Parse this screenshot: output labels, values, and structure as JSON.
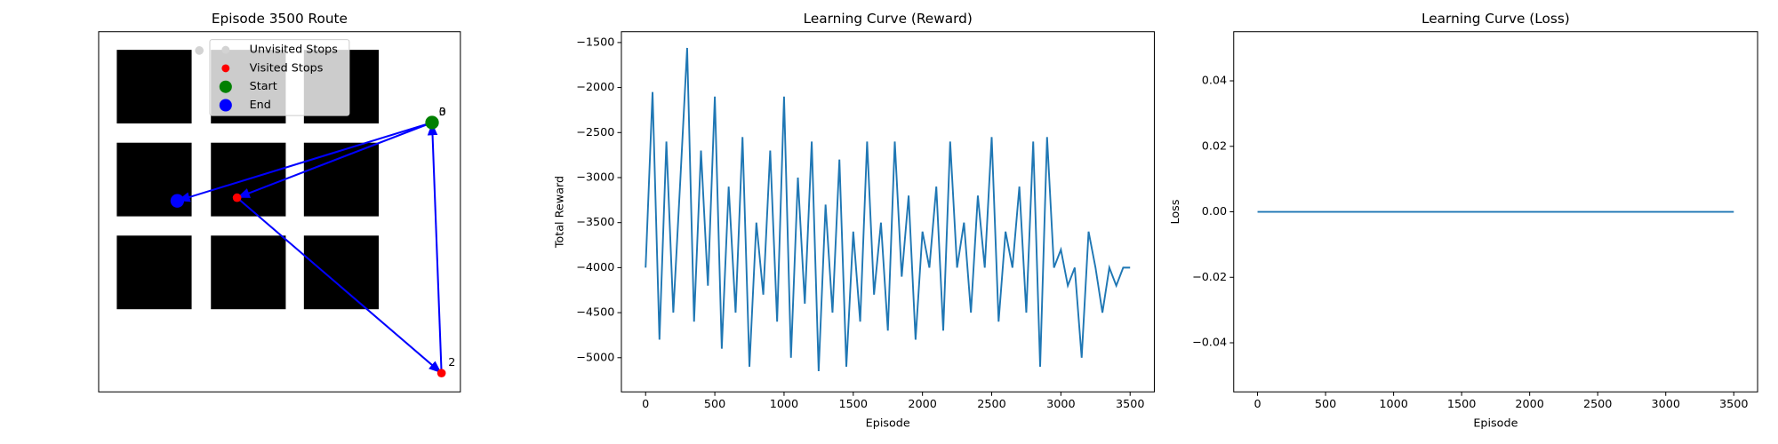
{
  "chart_data": [
    {
      "type": "scatter",
      "title": "Episode 3500 Route",
      "xlim": [
        -0.6,
        10.9
      ],
      "ylim": [
        -0.6,
        10.9
      ],
      "series": [
        {
          "name": "Unvisited Stops",
          "color": "#d3d3d3",
          "size": 40,
          "x": [
            2.6
          ],
          "values": [
            10.3
          ]
        },
        {
          "name": "Visited Stops",
          "color": "#ff0000",
          "size": 40,
          "x": [
            3.8,
            10.3
          ],
          "values": [
            5.6,
            0.0
          ]
        },
        {
          "name": "Start",
          "color": "#008000",
          "size": 100,
          "x": [
            10.0
          ],
          "values": [
            8.0
          ]
        },
        {
          "name": "End",
          "color": "#0000ff",
          "size": 100,
          "x": [
            1.9
          ],
          "values": [
            5.5
          ]
        }
      ],
      "route": {
        "color": "#0000ff",
        "x": [
          10.0,
          3.8,
          10.3,
          10.0,
          1.9
        ],
        "values": [
          8.0,
          5.6,
          0.0,
          8.0,
          5.5
        ]
      },
      "annotations": [
        {
          "text": "0",
          "x": 10.0,
          "y": 8.0
        },
        {
          "text": "2",
          "x": 10.3,
          "y": 0.0
        },
        {
          "text": "3",
          "x": 10.0,
          "y": 8.0
        }
      ],
      "legend": "upper center"
    },
    {
      "type": "line",
      "title": "Learning Curve (Reward)",
      "x_label": "Episode",
      "y_label": "Total Reward",
      "color": "#1f77b4",
      "xlim": [
        -175,
        3675
      ],
      "ylim": [
        -5380,
        -1380
      ],
      "xticks": [
        0,
        500,
        1000,
        1500,
        2000,
        2500,
        3000,
        3500
      ],
      "yticks": [
        {
          "value": -5000,
          "label": "−5000"
        },
        {
          "value": -4500,
          "label": "−4500"
        },
        {
          "value": -4000,
          "label": "−4000"
        },
        {
          "value": -3500,
          "label": "−3500"
        },
        {
          "value": -3000,
          "label": "−3000"
        },
        {
          "value": -2500,
          "label": "−2500"
        },
        {
          "value": -2000,
          "label": "−2000"
        },
        {
          "value": -1500,
          "label": "−1500"
        }
      ],
      "x": [
        0,
        50,
        100,
        150,
        200,
        250,
        300,
        350,
        400,
        450,
        500,
        550,
        600,
        650,
        700,
        750,
        800,
        850,
        900,
        950,
        1000,
        1050,
        1100,
        1150,
        1200,
        1250,
        1300,
        1350,
        1400,
        1450,
        1500,
        1550,
        1600,
        1650,
        1700,
        1750,
        1800,
        1850,
        1900,
        1950,
        2000,
        2050,
        2100,
        2150,
        2200,
        2250,
        2300,
        2350,
        2400,
        2450,
        2500,
        2550,
        2600,
        2650,
        2700,
        2750,
        2800,
        2850,
        2900,
        2950,
        3000,
        3050,
        3100,
        3150,
        3200,
        3250,
        3300,
        3350,
        3400,
        3450,
        3500
      ],
      "values": [
        -4000,
        -2050,
        -4800,
        -2600,
        -4500,
        -3050,
        -1560,
        -4600,
        -2700,
        -4200,
        -2100,
        -4900,
        -3100,
        -4500,
        -2550,
        -5100,
        -3500,
        -4300,
        -2700,
        -4600,
        -2100,
        -5000,
        -3000,
        -4400,
        -2600,
        -5150,
        -3300,
        -4500,
        -2800,
        -5100,
        -3600,
        -4600,
        -2600,
        -4300,
        -3500,
        -4700,
        -2600,
        -4100,
        -3200,
        -4800,
        -3600,
        -4000,
        -3100,
        -4700,
        -2600,
        -4000,
        -3500,
        -4500,
        -3200,
        -4000,
        -2550,
        -4600,
        -3600,
        -4000,
        -3100,
        -4500,
        -2600,
        -5100,
        -2550,
        -4000,
        -3800,
        -4200,
        -4000,
        -5000,
        -3600,
        -4000,
        -4500,
        -4000,
        -4200,
        -4000,
        -4000
      ]
    },
    {
      "type": "line",
      "title": "Learning Curve (Loss)",
      "x_label": "Episode",
      "y_label": "Loss",
      "color": "#1f77b4",
      "xlim": [
        -175,
        3675
      ],
      "ylim": [
        -0.055,
        0.055
      ],
      "xticks": [
        0,
        500,
        1000,
        1500,
        2000,
        2500,
        3000,
        3500
      ],
      "yticks": [
        {
          "value": -0.04,
          "label": "−0.04"
        },
        {
          "value": -0.02,
          "label": "−0.02"
        },
        {
          "value": 0,
          "label": "0.00"
        },
        {
          "value": 0.02,
          "label": "0.02"
        },
        {
          "value": 0.04,
          "label": "0.04"
        }
      ],
      "x": [
        0,
        3500
      ],
      "values": [
        0,
        0
      ]
    }
  ]
}
